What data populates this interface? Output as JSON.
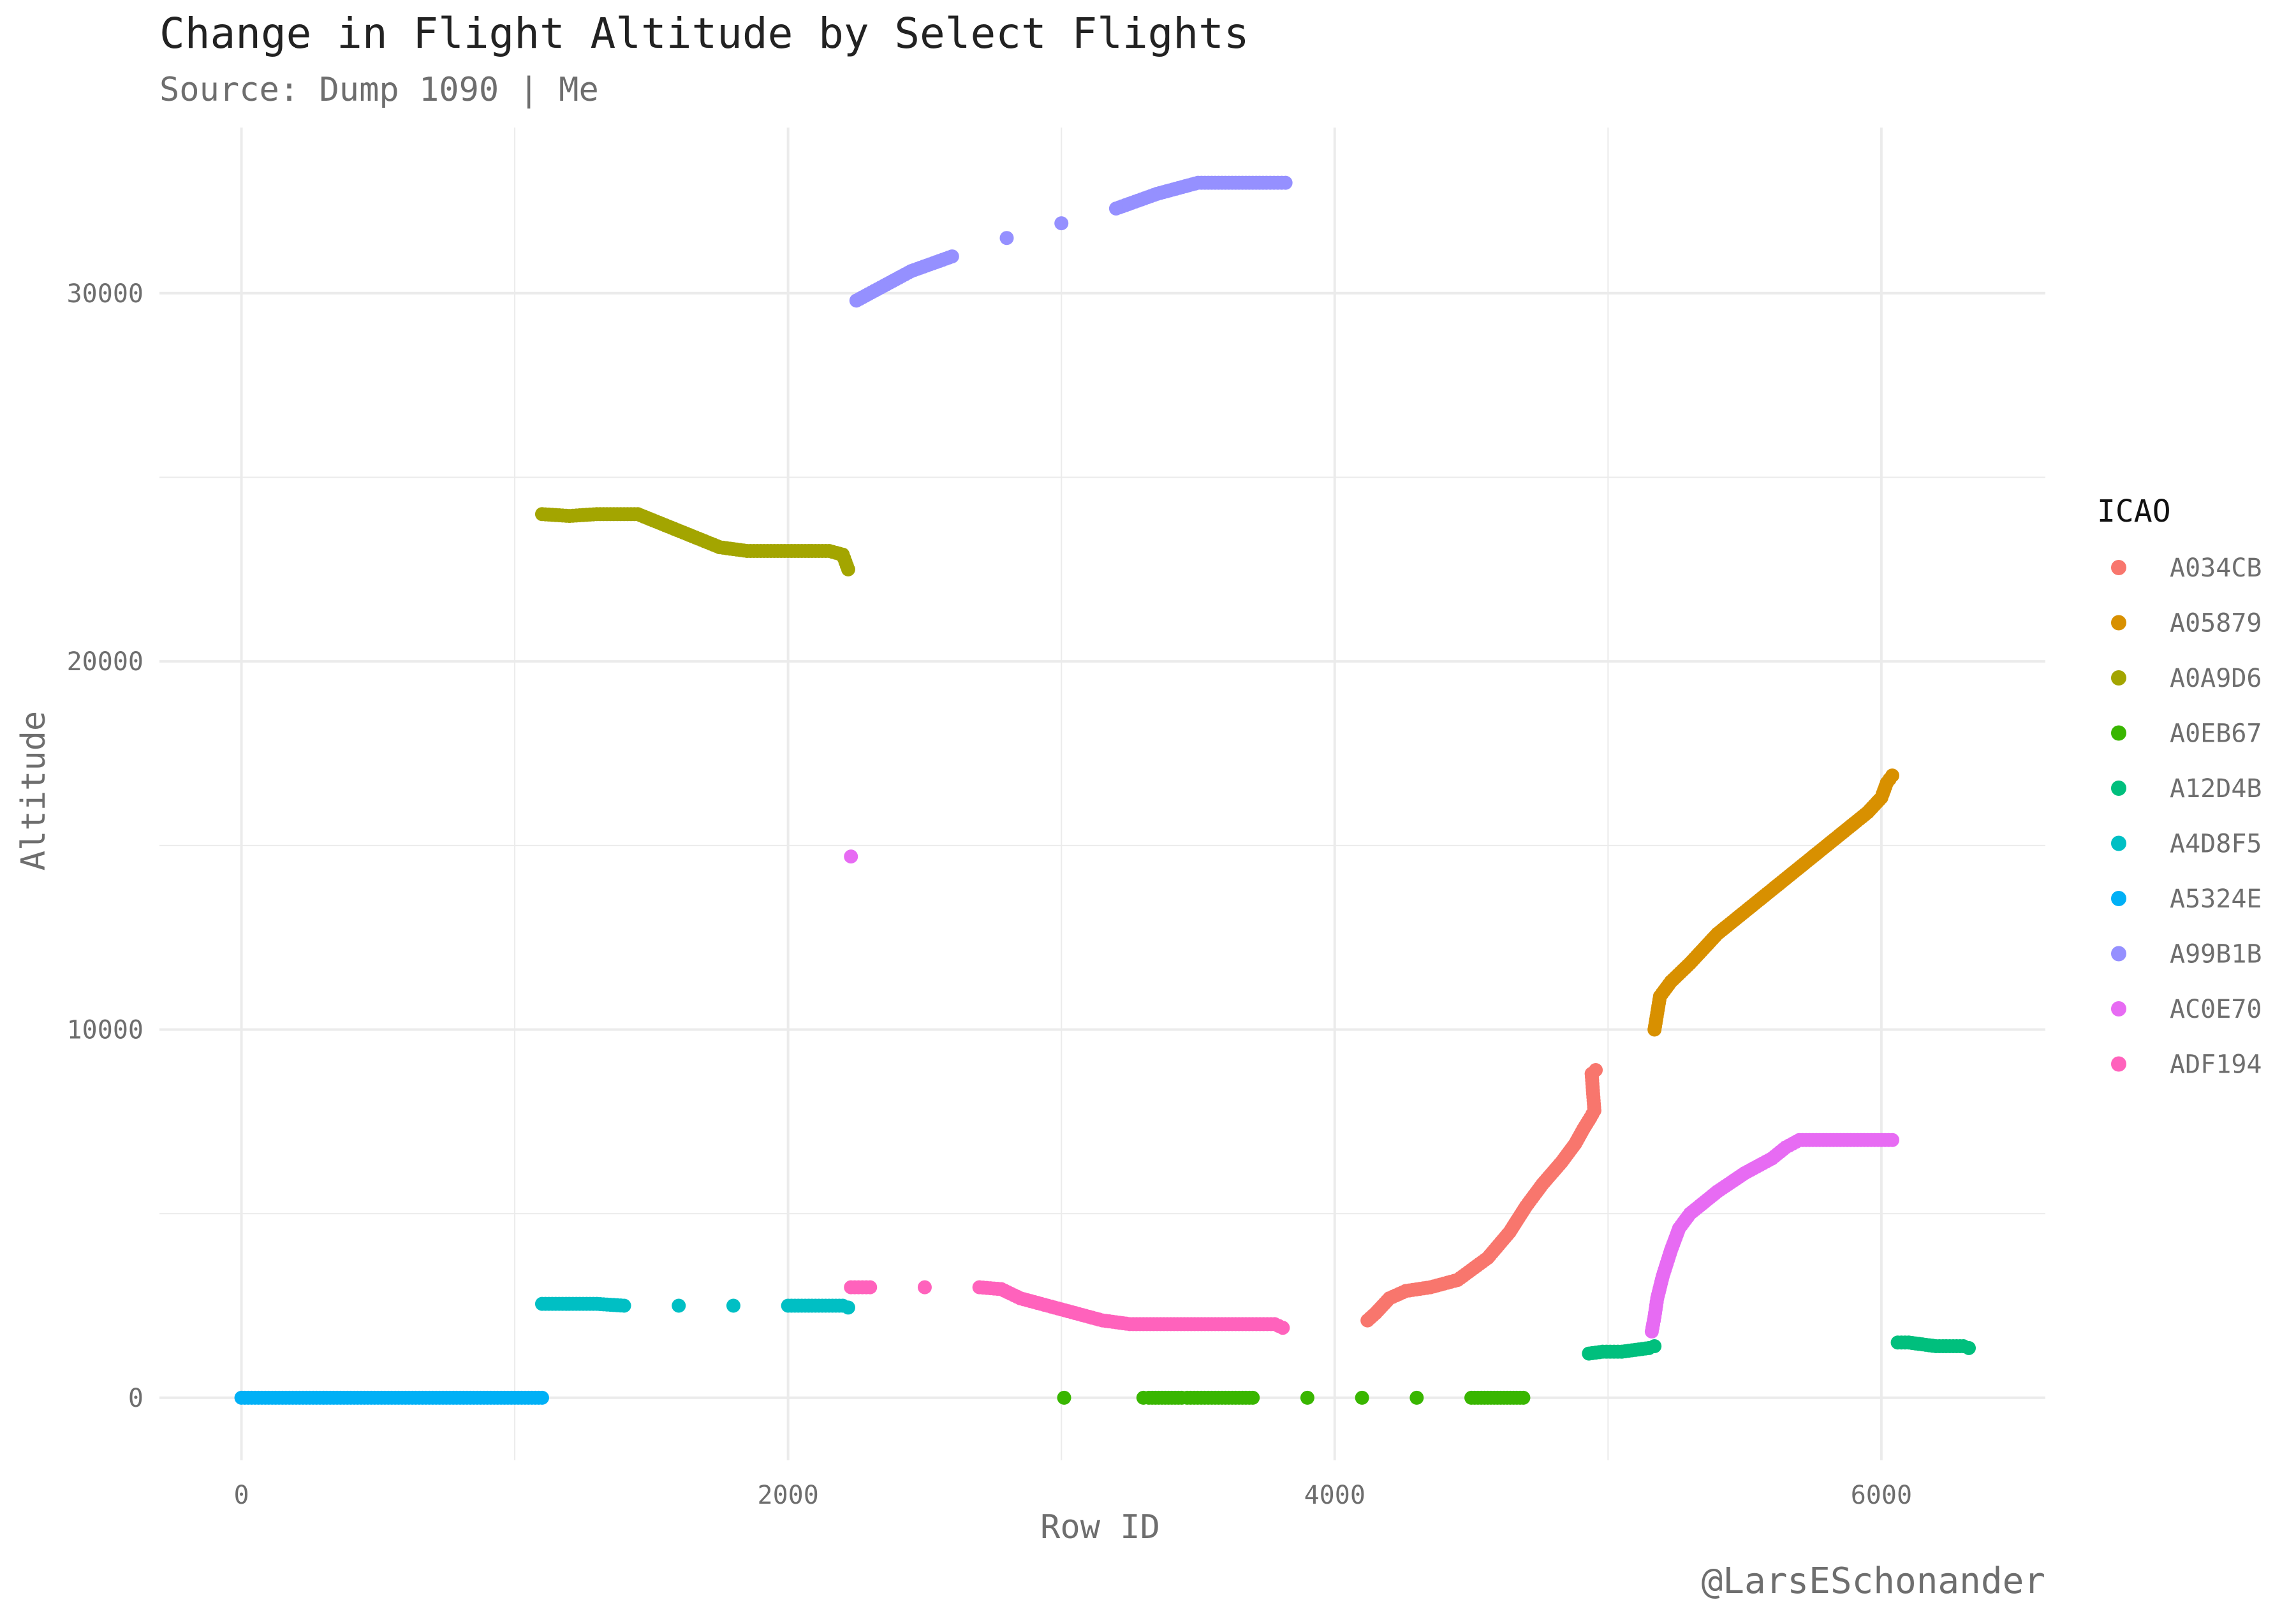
{
  "chart_data": {
    "type": "scatter",
    "title": "Change in Flight Altitude by Select Flights",
    "subtitle": "Source: Dump 1090 | Me",
    "caption": "@LarsESchonander",
    "xlabel": "Row ID",
    "ylabel": "Altitude",
    "xlim": [
      -300,
      6600
    ],
    "ylim": [
      -1700,
      34500
    ],
    "x_ticks": [
      0,
      2000,
      4000,
      6000
    ],
    "x_tick_labels": [
      "0",
      "2000",
      "4000",
      "6000"
    ],
    "y_ticks": [
      0,
      10000,
      20000,
      30000
    ],
    "y_tick_labels": [
      "0",
      "10000",
      "20000",
      "30000"
    ],
    "grid": true,
    "legend": {
      "title": "ICAO",
      "position": "right"
    },
    "series": [
      {
        "name": "A034CB",
        "color": "#F8766D",
        "x": [
          4120,
          4150,
          4200,
          4260,
          4350,
          4450,
          4560,
          4640,
          4700,
          4760,
          4830,
          4880,
          4910,
          4935,
          4950,
          4940,
          4955
        ],
        "y": [
          2100,
          2300,
          2700,
          2900,
          3000,
          3200,
          3800,
          4500,
          5200,
          5800,
          6400,
          6900,
          7300,
          7600,
          7800,
          8800,
          8900
        ]
      },
      {
        "name": "A05879",
        "color": "#D89000",
        "x": [
          5170,
          5190,
          5230,
          5300,
          5400,
          5500,
          5600,
          5700,
          5800,
          5900,
          5950,
          6000,
          6020,
          6040
        ],
        "y": [
          10000,
          10900,
          11300,
          11800,
          12600,
          13200,
          13800,
          14400,
          15000,
          15600,
          15900,
          16300,
          16700,
          16900
        ]
      },
      {
        "name": "A0A9D6",
        "color": "#A3A500",
        "x": [
          1100,
          1200,
          1300,
          1450,
          1550,
          1650,
          1750,
          1850,
          2000,
          2100,
          2150,
          2200,
          2220
        ],
        "y": [
          24000,
          23950,
          24000,
          24000,
          23700,
          23400,
          23100,
          23000,
          23000,
          23000,
          23000,
          22900,
          22500
        ]
      },
      {
        "name": "A0EB67",
        "color": "#39B600",
        "x": [
          3010,
          3300,
          3320,
          3440,
          3460,
          3550,
          3700,
          3900,
          4100,
          4300,
          4500,
          4560,
          4690
        ],
        "y": [
          0,
          0,
          0,
          0,
          0,
          0,
          0,
          0,
          0,
          0,
          0,
          0,
          0
        ]
      },
      {
        "name": "A12D4B",
        "color": "#00BF7D",
        "x": [
          4930,
          4980,
          5050,
          5100,
          5150,
          5170,
          6060,
          6100,
          6150,
          6200,
          6250,
          6300,
          6320
        ],
        "y": [
          1200,
          1250,
          1250,
          1300,
          1350,
          1400,
          1500,
          1500,
          1450,
          1400,
          1400,
          1400,
          1350
        ]
      },
      {
        "name": "A4D8F5",
        "color": "#00BFC4",
        "x": [
          1100,
          1200,
          1300,
          1400,
          1600,
          1800,
          2000,
          2100,
          2200,
          2220
        ],
        "y": [
          2550,
          2550,
          2550,
          2500,
          2500,
          2500,
          2500,
          2500,
          2500,
          2450
        ]
      },
      {
        "name": "A5324E",
        "color": "#00B0F6",
        "x": [
          0,
          150,
          300,
          450,
          600,
          750,
          900,
          1050,
          1100
        ],
        "y": [
          0,
          0,
          0,
          0,
          0,
          0,
          0,
          0,
          0
        ]
      },
      {
        "name": "A99B1B",
        "color": "#9590FF",
        "x": [
          2250,
          2350,
          2450,
          2600,
          2800,
          3000,
          3200,
          3350,
          3500,
          3600,
          3700,
          3750,
          3820
        ],
        "y": [
          29800,
          30200,
          30600,
          31000,
          31500,
          31900,
          32300,
          32700,
          33000,
          33000,
          33000,
          33000,
          33000
        ]
      },
      {
        "name": "AC0E70",
        "color": "#E76BF3",
        "x": [
          2230,
          5160,
          5170,
          5180,
          5200,
          5230,
          5260,
          5300,
          5400,
          5500,
          5600,
          5650,
          5700,
          5800,
          5900,
          6000,
          6040
        ],
        "y": [
          14700,
          1800,
          2200,
          2700,
          3300,
          4000,
          4600,
          5000,
          5600,
          6100,
          6500,
          6800,
          7000,
          7000,
          7000,
          7000,
          7000
        ]
      },
      {
        "name": "ADF194",
        "color": "#FF62BC",
        "x": [
          2230,
          2300,
          2500,
          2700,
          2780,
          2850,
          2950,
          3050,
          3150,
          3250,
          3400,
          3550,
          3700,
          3780,
          3810
        ],
        "y": [
          3000,
          3000,
          3000,
          3000,
          2950,
          2700,
          2500,
          2300,
          2100,
          2000,
          2000,
          2000,
          2000,
          2000,
          1900
        ]
      }
    ]
  }
}
